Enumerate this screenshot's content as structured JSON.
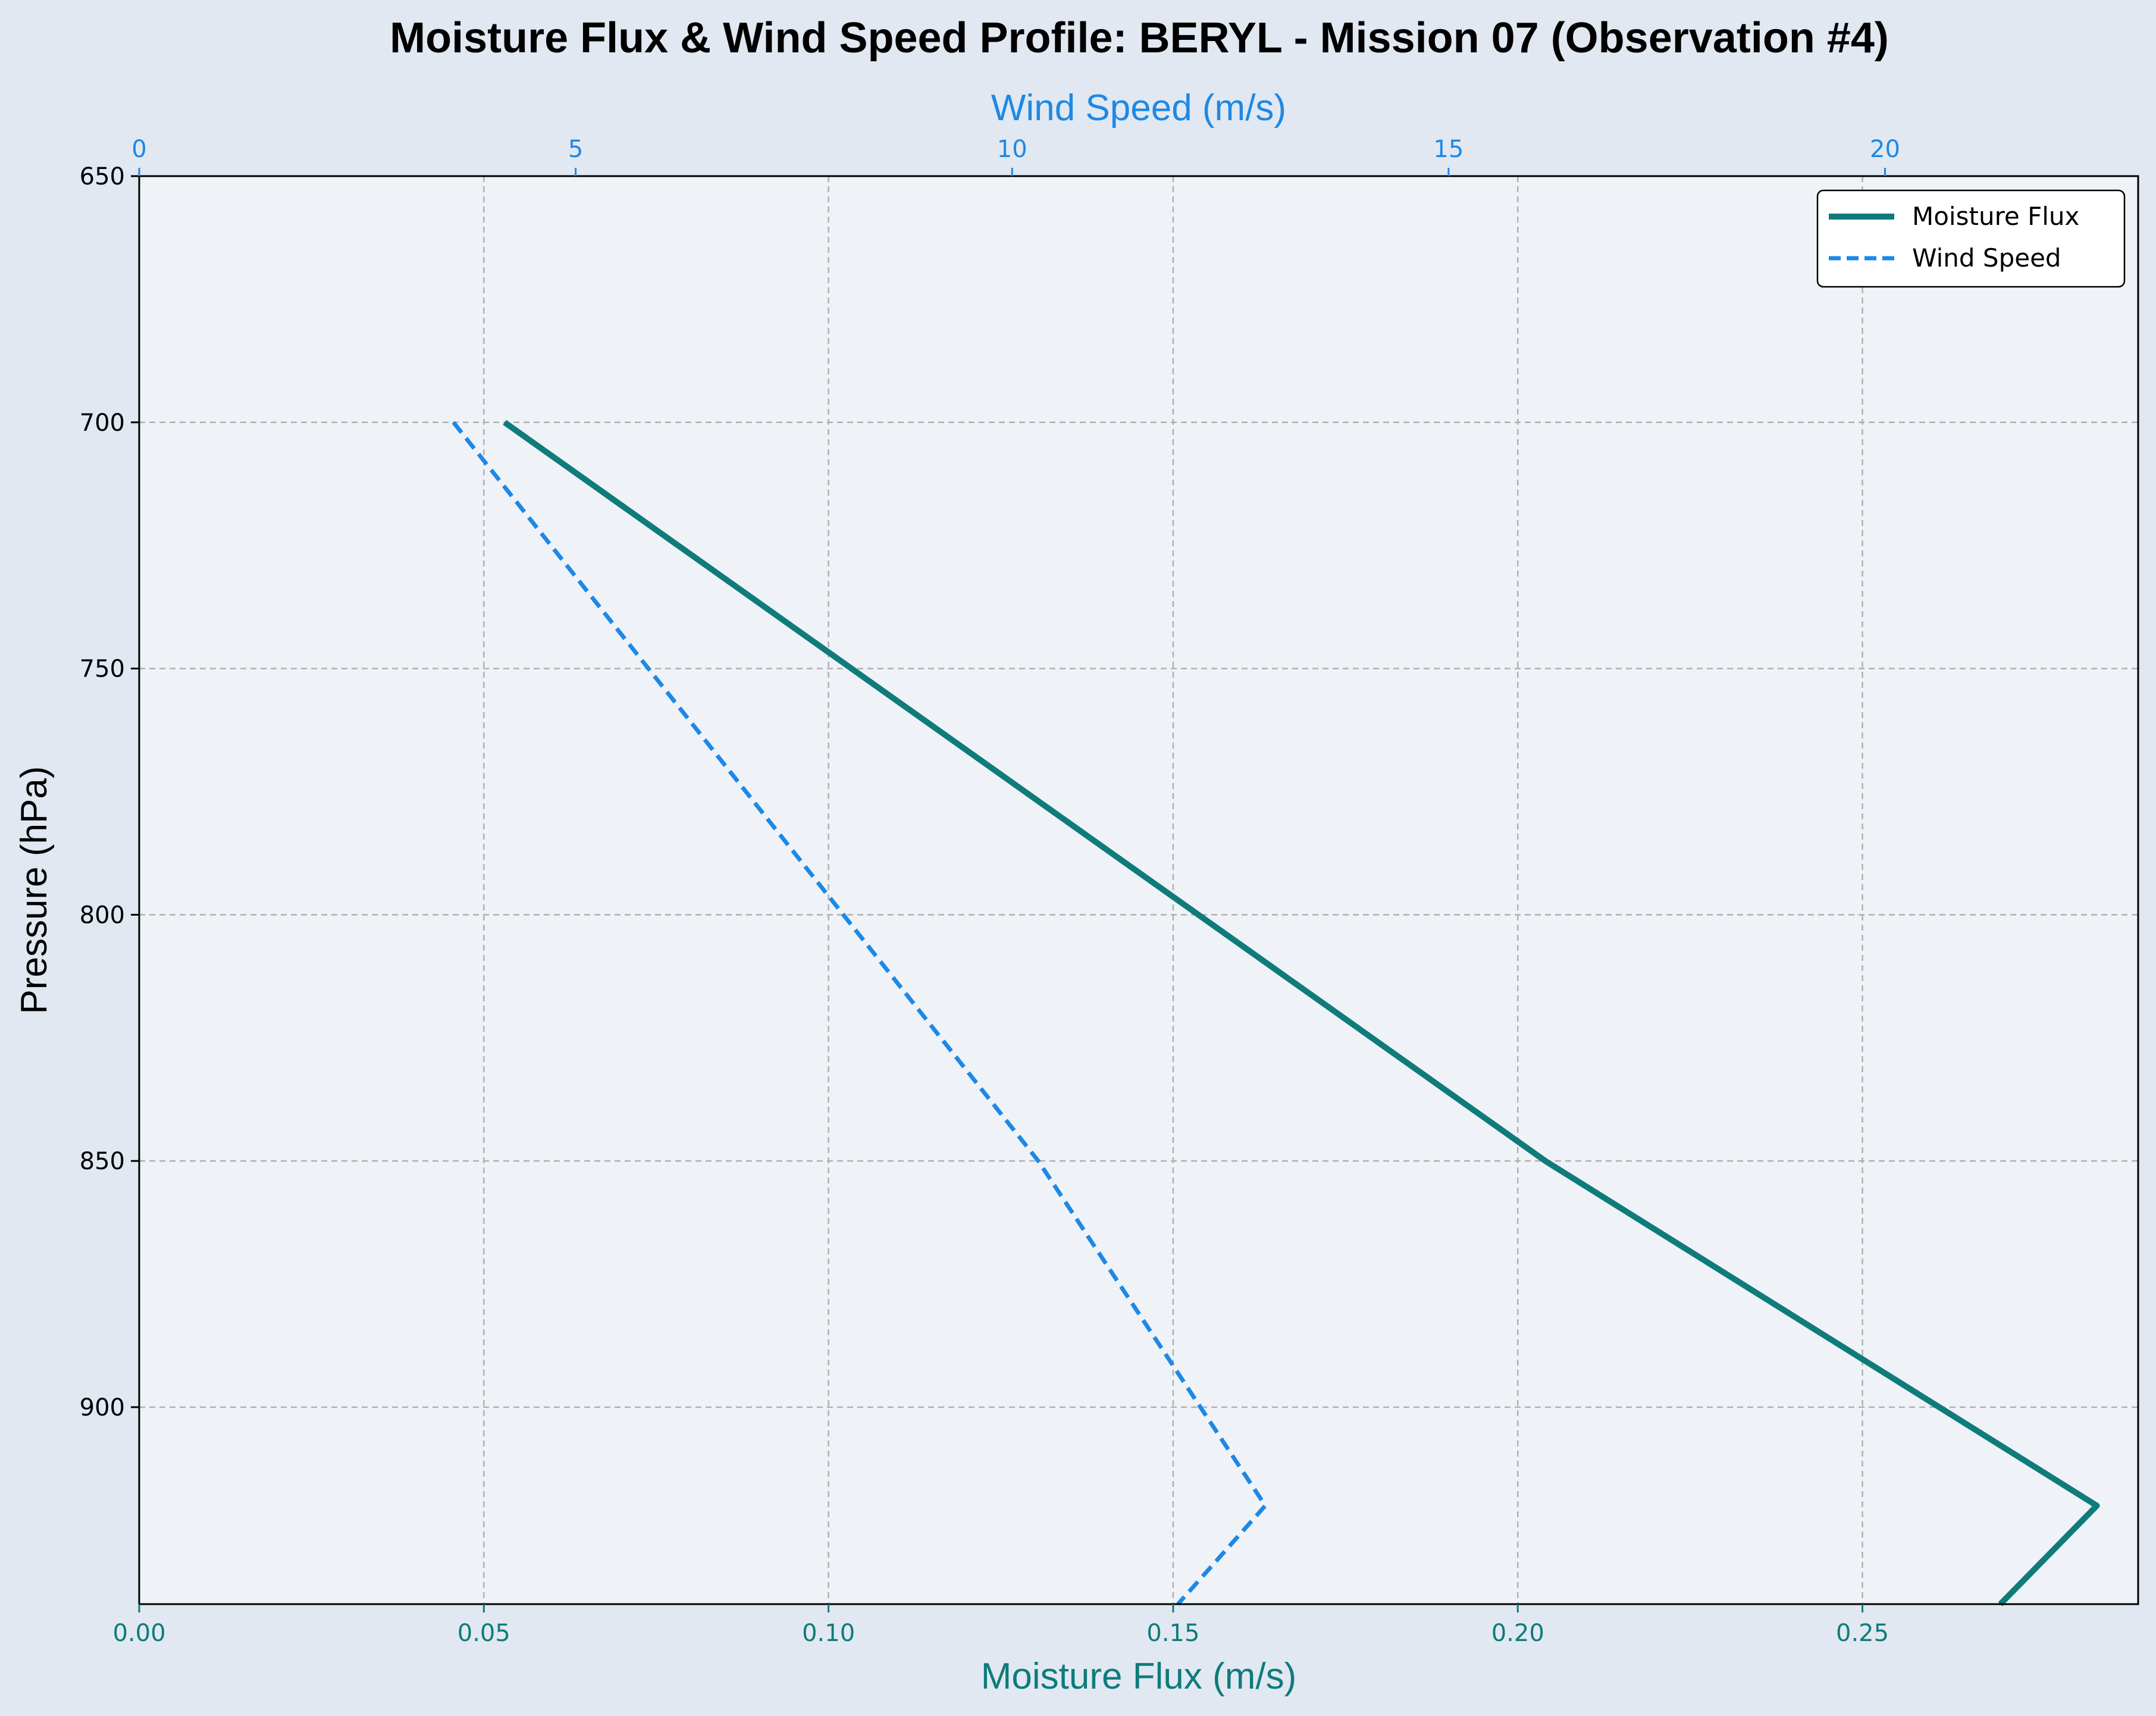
{
  "chart_data": {
    "type": "line",
    "title": "Moisture Flux & Wind Speed Profile: BERYL - Mission 07 (Observation #4)",
    "y_axis": {
      "label": "Pressure (hPa)",
      "range": [
        650,
        940
      ],
      "inverted": true,
      "ticks": [
        650,
        700,
        750,
        800,
        850,
        900
      ],
      "color": "#000000"
    },
    "x_axis_bottom": {
      "label": "Moisture Flux (m/s)",
      "range": [
        0.0,
        0.29
      ],
      "ticks": [
        "0.00",
        "0.05",
        "0.10",
        "0.15",
        "0.20",
        "0.25"
      ],
      "color": "#0f7b7b"
    },
    "x_axis_top": {
      "label": "Wind Speed (m/s)",
      "range": [
        0,
        22.9
      ],
      "ticks": [
        "0",
        "5",
        "10",
        "15",
        "20"
      ],
      "color": "#1e88e5"
    },
    "series": [
      {
        "name": "Moisture Flux",
        "axis": "bottom",
        "color": "#0f7b7b",
        "style": "solid",
        "points": [
          {
            "p": 700,
            "v": 0.053
          },
          {
            "p": 850,
            "v": 0.204
          },
          {
            "p": 920,
            "v": 0.284
          },
          {
            "p": 940,
            "v": 0.27
          }
        ]
      },
      {
        "name": "Wind Speed",
        "axis": "top",
        "color": "#1e88e5",
        "style": "dashed",
        "points": [
          {
            "p": 700,
            "v": 3.6
          },
          {
            "p": 850,
            "v": 10.3
          },
          {
            "p": 920,
            "v": 12.9
          },
          {
            "p": 940,
            "v": 11.9
          }
        ]
      }
    ],
    "grid": true,
    "legend_position": "top-right"
  }
}
